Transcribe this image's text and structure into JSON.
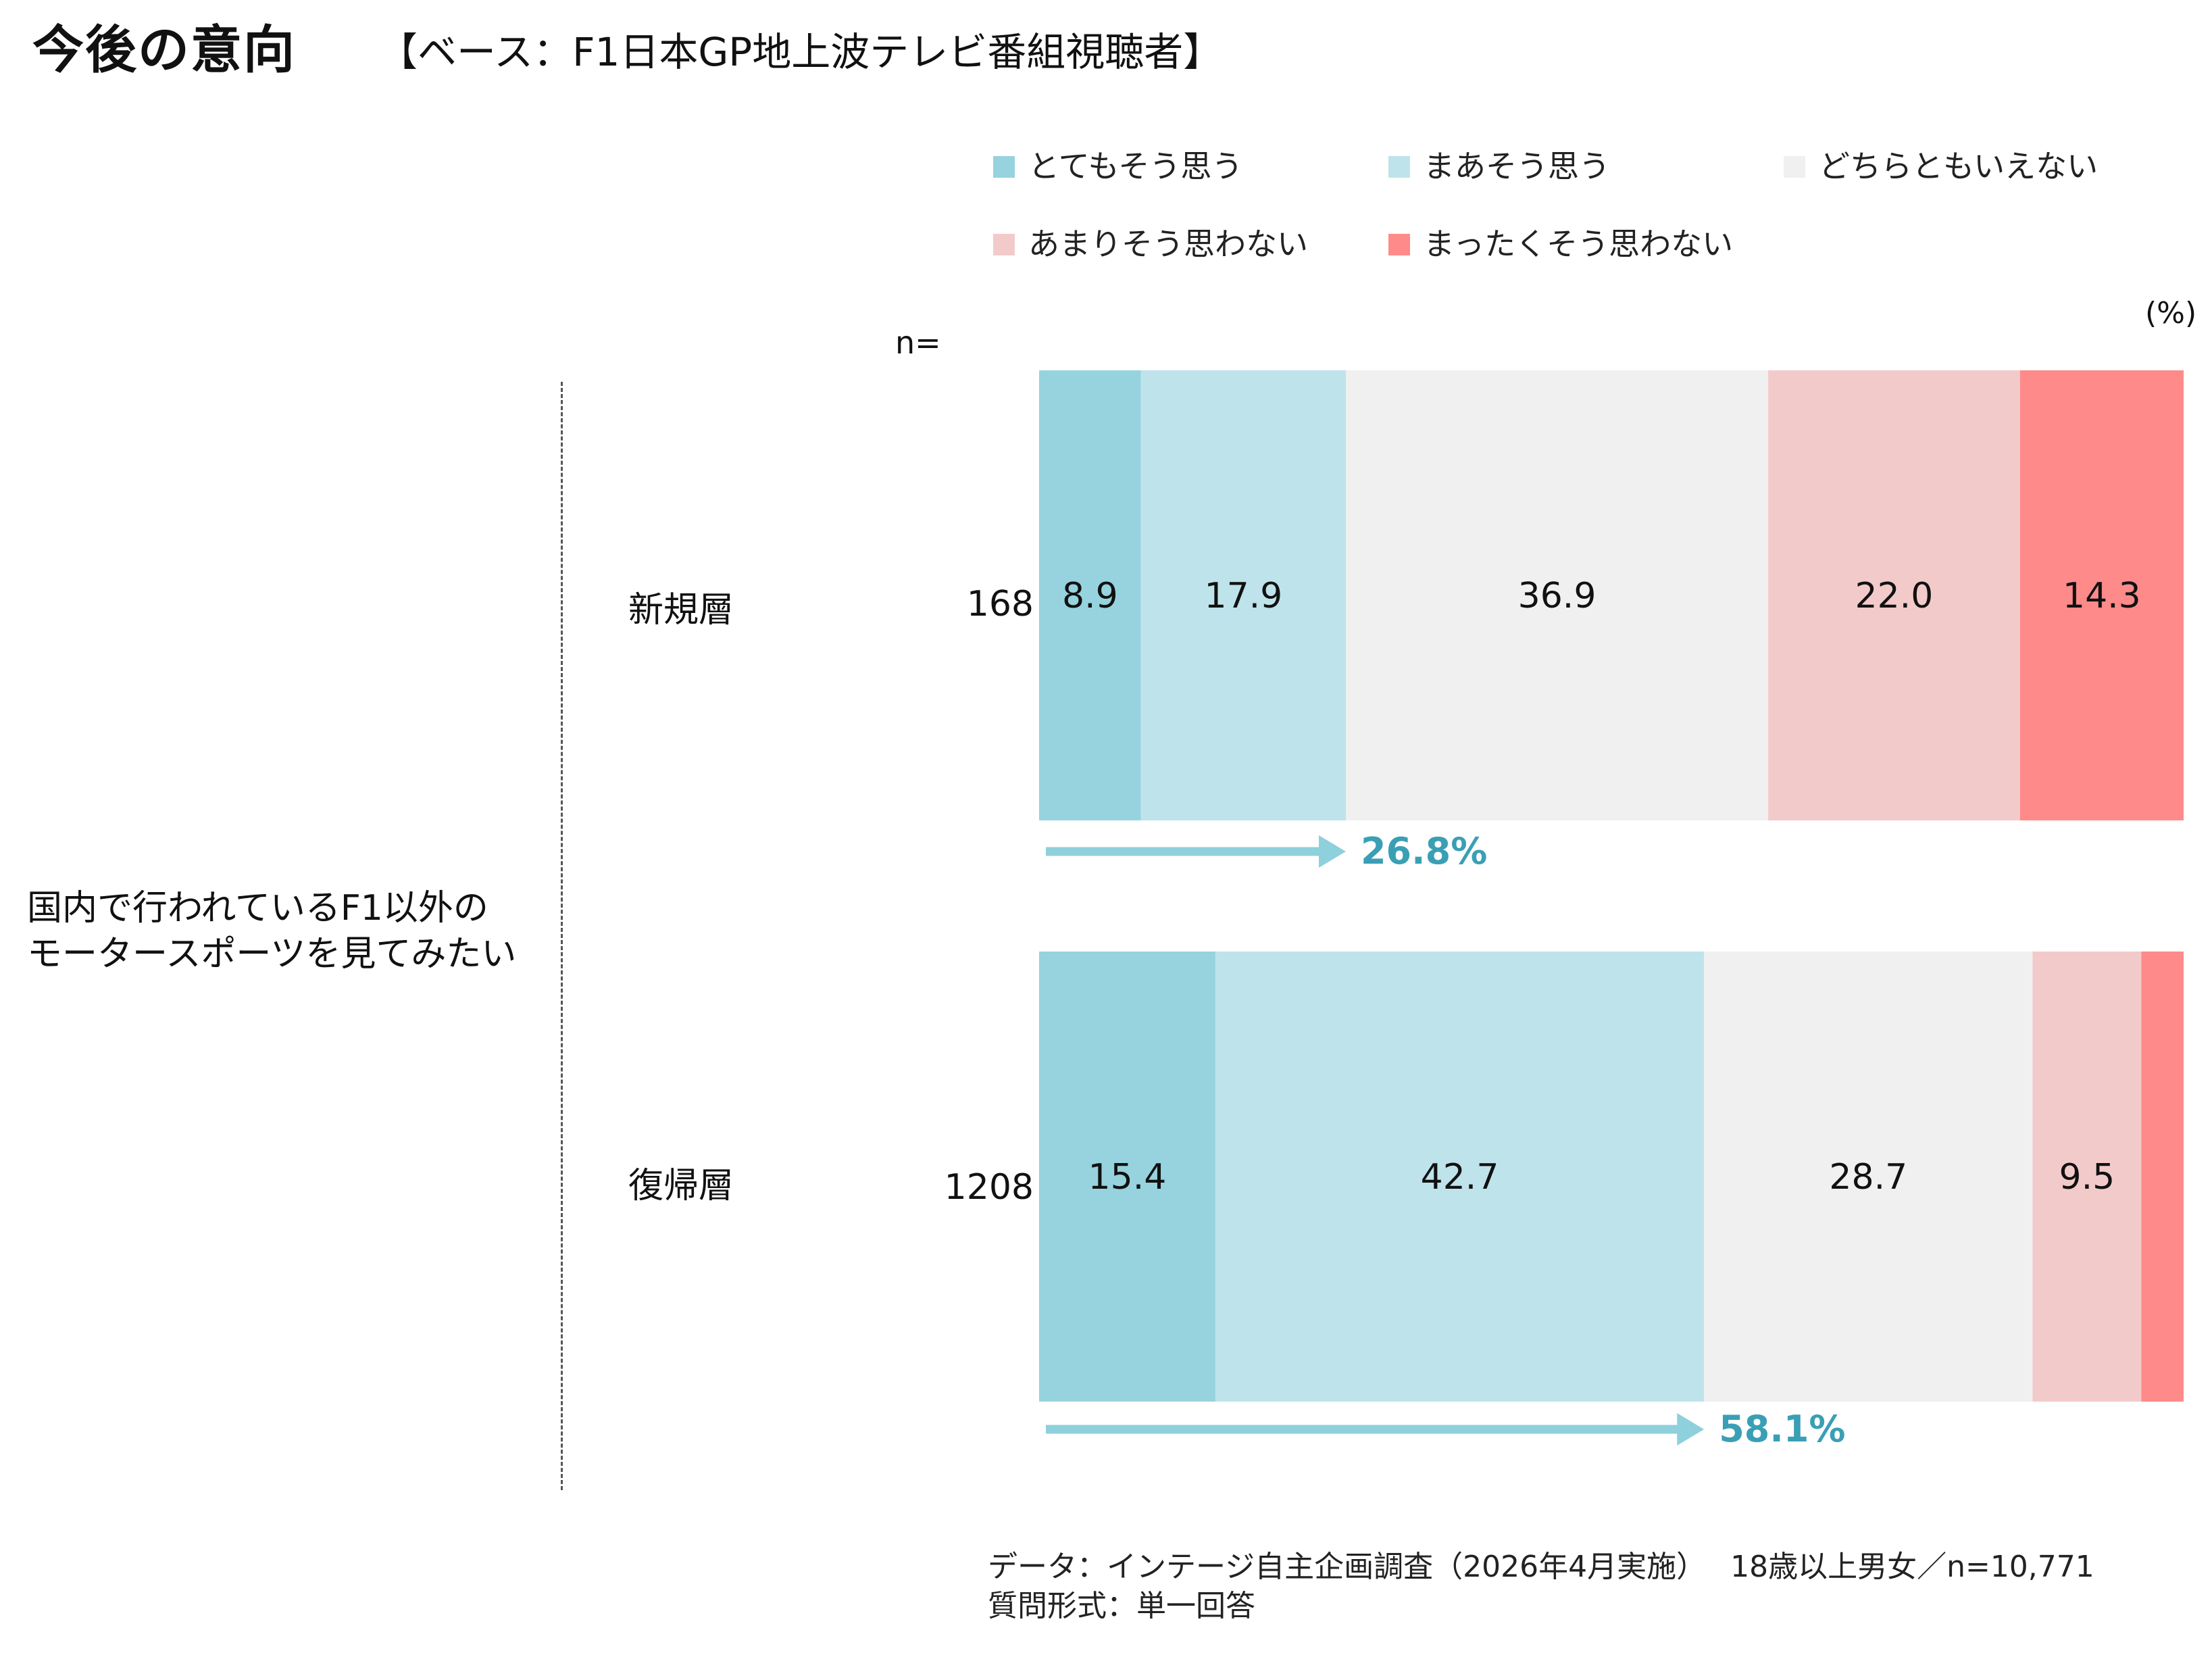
{
  "title": "今後の意向",
  "subtitle": "【ベース：F1日本GP地上波テレビ番組視聴者】",
  "unit_label": "(%)",
  "n_header": "n=",
  "question": "国内で行われているF1以外の\nモータースポーツを見てみたい",
  "legend": [
    {
      "label": "とてもそう思う",
      "color": "#96D3DE"
    },
    {
      "label": "まあそう思う",
      "color": "#BEE3EB"
    },
    {
      "label": "どちらともいえない",
      "color": "#F0F0F0"
    },
    {
      "label": "あまりそう思わない",
      "color": "#F3CACA"
    },
    {
      "label": "まったくそう思わない",
      "color": "#FF8A8A"
    }
  ],
  "groups": [
    {
      "label": "新規層",
      "n": "168",
      "top2_label": "26.8%"
    },
    {
      "label": "復帰層",
      "n": "1208",
      "top2_label": "58.1%"
    }
  ],
  "accent_color": "#3A9FB5",
  "arrow_color": "#8ED0DC",
  "chart_data": {
    "type": "bar",
    "orientation": "horizontal",
    "stacked": true,
    "percent_stacked": true,
    "categories": [
      "新規層",
      "復帰層"
    ],
    "series": [
      {
        "name": "とてもそう思う",
        "values": [
          8.9,
          15.4
        ],
        "labels": [
          "8.9",
          "15.4"
        ]
      },
      {
        "name": "まあそう思う",
        "values": [
          17.9,
          42.7
        ],
        "labels": [
          "17.9",
          "42.7"
        ]
      },
      {
        "name": "どちらともいえない",
        "values": [
          36.9,
          28.7
        ],
        "labels": [
          "36.9",
          "28.7"
        ]
      },
      {
        "name": "あまりそう思わない",
        "values": [
          22.0,
          9.5
        ],
        "labels": [
          "22.0",
          "9.5"
        ]
      },
      {
        "name": "まったくそう思わない",
        "values": [
          14.3,
          3.7
        ],
        "labels": [
          "14.3",
          ""
        ]
      }
    ],
    "top2_totals": [
      26.8,
      58.1
    ],
    "xlim": [
      0,
      100
    ],
    "legend_position": "top"
  },
  "footnotes": {
    "line1": "データ：インテージ自主企画調査（2026年4月実施）　 18歳以上男女／n=10,771",
    "line2": "質問形式：単一回答"
  }
}
